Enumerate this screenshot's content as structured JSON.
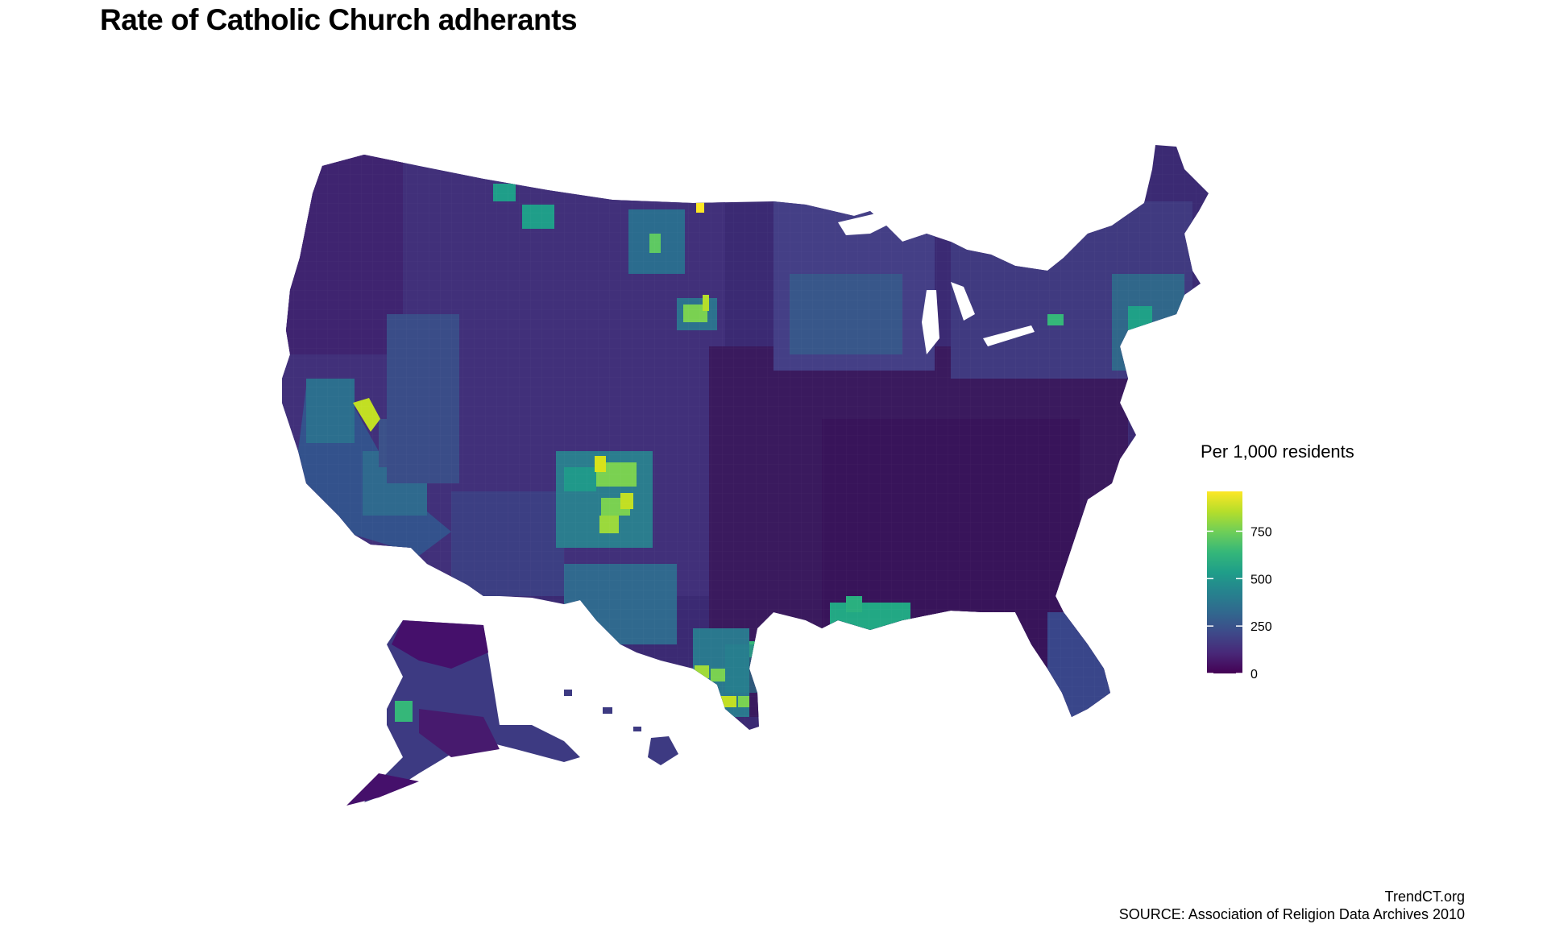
{
  "title": "Rate of Catholic Church adherants",
  "legend": {
    "title": "Per 1,000 residents",
    "min": 0,
    "max": 960,
    "ticks": [
      {
        "value": 0,
        "label": "0"
      },
      {
        "value": 250,
        "label": "250"
      },
      {
        "value": 500,
        "label": "500"
      },
      {
        "value": 750,
        "label": "750"
      }
    ],
    "colors": [
      "#440154",
      "#482878",
      "#3e4989",
      "#31688e",
      "#26828e",
      "#1f9e89",
      "#35b779",
      "#6ece58",
      "#b5de2b",
      "#fde725"
    ]
  },
  "credits": {
    "site": "TrendCT.org",
    "source": "SOURCE: Association of Religion Data Archives 2010"
  },
  "background_color": "#ffffff"
}
